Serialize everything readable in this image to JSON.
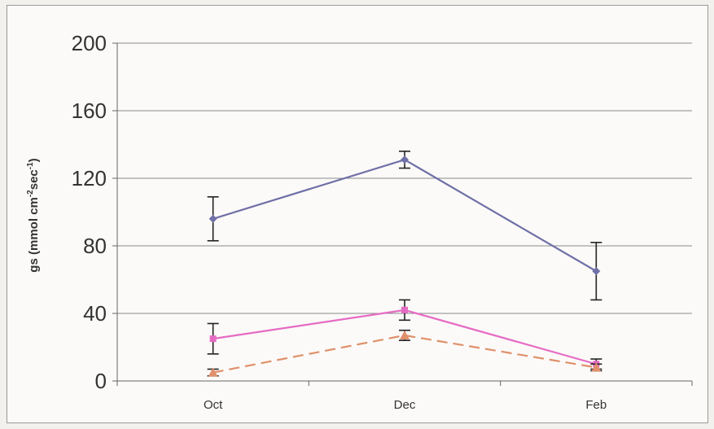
{
  "chart_data": {
    "type": "line",
    "categories": [
      "Oct",
      "Dec",
      "Feb"
    ],
    "ylabel_main": "gs (mmol cm",
    "ylabel_sup1": "-2",
    "ylabel_mid": "sec",
    "ylabel_sup2": "-1",
    "ylabel_end": ")",
    "ylim": [
      0,
      200
    ],
    "yticks": [
      0,
      40,
      80,
      120,
      160,
      200
    ],
    "grid": true,
    "series": [
      {
        "values": [
          96,
          131,
          65
        ],
        "errors": [
          13,
          5,
          17
        ],
        "color": "#7070a8",
        "marker": "diamond",
        "dash": false
      },
      {
        "values": [
          25,
          42,
          10
        ],
        "errors": [
          9,
          6,
          3
        ],
        "color": "#e66bc4",
        "marker": "square",
        "dash": false
      },
      {
        "values": [
          5,
          27,
          8
        ],
        "errors": [
          2,
          3,
          2
        ],
        "color": "#e0906a",
        "marker": "triangle",
        "dash": true
      }
    ]
  }
}
